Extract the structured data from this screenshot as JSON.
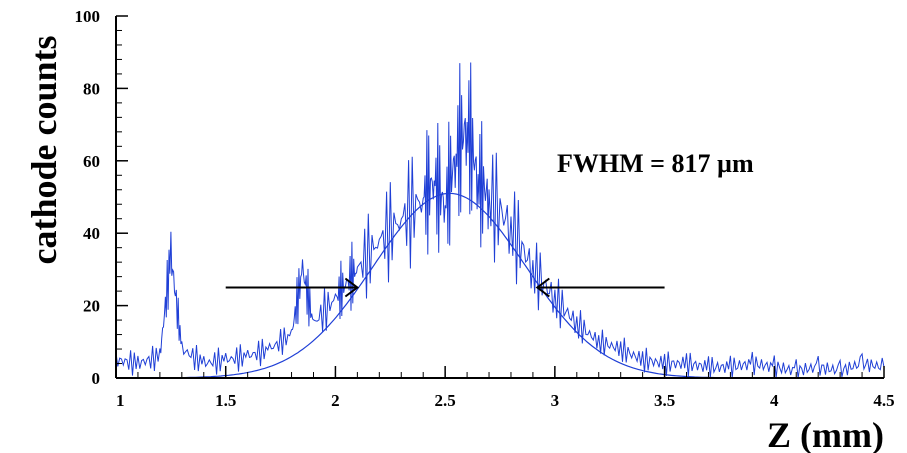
{
  "chart_data": {
    "type": "line",
    "title": "",
    "xlabel": "Z (mm)",
    "ylabel": "cathode counts",
    "xlim": [
      1,
      4.5
    ],
    "ylim": [
      0,
      100
    ],
    "xticks": [
      "1",
      "1.5",
      "2",
      "2.5",
      "3",
      "3.5",
      "4",
      "4.5"
    ],
    "yticks": [
      "0",
      "20",
      "40",
      "60",
      "80",
      "100"
    ],
    "grid": false,
    "annotation": "FWHM = 817 µm",
    "colors": {
      "data": "#1f3fd6",
      "fit": "#1f3fd6",
      "arrows": "#000000"
    },
    "series": [
      {
        "type": "line",
        "x": [
          1.0,
          1.1,
          1.2,
          1.25,
          1.3,
          1.4,
          1.5,
          1.6,
          1.7,
          1.8,
          1.85,
          1.9,
          2.0,
          2.05,
          2.1,
          2.2,
          2.3,
          2.4,
          2.45,
          2.5,
          2.55,
          2.6,
          2.65,
          2.7,
          2.8,
          2.9,
          3.0,
          3.1,
          3.2,
          3.3,
          3.4,
          3.5,
          3.6,
          3.7,
          3.8,
          3.9,
          4.0,
          4.1,
          4.2,
          4.3,
          4.4,
          4.5
        ],
        "y": [
          5,
          4,
          6,
          34,
          8,
          4,
          5,
          6,
          8,
          12,
          30,
          15,
          22,
          26,
          30,
          38,
          44,
          50,
          55,
          48,
          62,
          70,
          55,
          50,
          42,
          30,
          22,
          15,
          10,
          8,
          5,
          4,
          4,
          3,
          3,
          4,
          3,
          2,
          3,
          2,
          4,
          3
        ]
      },
      {
        "type": "gaussian-fit",
        "amplitude": 51,
        "mean": 2.52,
        "sigma": 0.347
      }
    ],
    "fwhm_markers": {
      "left": {
        "from_x": 1.5,
        "to_x": 2.1,
        "y": 25
      },
      "right": {
        "from_x": 3.5,
        "to_x": 2.92,
        "y": 25
      }
    }
  }
}
